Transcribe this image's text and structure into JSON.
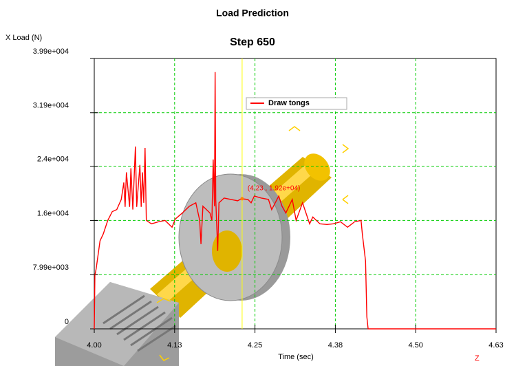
{
  "chart_data": {
    "type": "line",
    "title": "Load Prediction",
    "subtitle": "Step  650",
    "ylabel": "X Load (N)",
    "xlabel": "Time (sec)",
    "triad_label": "Z",
    "xlim": [
      4.0,
      4.625
    ],
    "ylim": [
      0,
      39900
    ],
    "xticks": [
      {
        "value": 4.0,
        "label": "4.00"
      },
      {
        "value": 4.125,
        "label": "4.13"
      },
      {
        "value": 4.25,
        "label": "4.25"
      },
      {
        "value": 4.375,
        "label": "4.38"
      },
      {
        "value": 4.5,
        "label": "4.50"
      },
      {
        "value": 4.625,
        "label": "4.63"
      }
    ],
    "yticks": [
      0,
      {
        "value": 7990,
        "label": "7.99e+003"
      },
      {
        "value": 16000,
        "label": "1.6e+004"
      },
      {
        "value": 24000,
        "label": "2.4e+004"
      },
      {
        "value": 31900,
        "label": "3.19e+004"
      },
      {
        "value": 39900,
        "label": "3.99e+004"
      }
    ],
    "grid": true,
    "legend": "top-center",
    "cursor": {
      "x": 4.23,
      "y": 19200,
      "label": "(4.23 , 1.92e+04)",
      "color": "#ffff00"
    },
    "series": [
      {
        "name": "Draw tongs",
        "color": "#ff0000",
        "x": [
          4.0,
          4.001,
          4.003,
          4.009,
          4.014,
          4.021,
          4.028,
          4.035,
          4.042,
          4.046,
          4.048,
          4.05,
          4.055,
          4.057,
          4.06,
          4.064,
          4.066,
          4.071,
          4.073,
          4.075,
          4.077,
          4.079,
          4.081,
          4.089,
          4.1,
          4.11,
          4.121,
          4.126,
          4.137,
          4.148,
          4.158,
          4.164,
          4.166,
          4.169,
          4.18,
          4.183,
          4.185,
          4.187,
          4.188,
          4.189,
          4.192,
          4.194,
          4.202,
          4.212,
          4.223,
          4.229,
          4.239,
          4.244,
          4.249,
          4.26,
          4.271,
          4.276,
          4.287,
          4.292,
          4.298,
          4.308,
          4.314,
          4.324,
          4.335,
          4.34,
          4.351,
          4.362,
          4.372,
          4.383,
          4.394,
          4.405,
          4.415,
          4.417,
          4.422,
          4.424,
          4.426,
          4.625
        ],
        "values": [
          0,
          7900,
          8900,
          13000,
          14000,
          16000,
          17300,
          17600,
          19100,
          21600,
          18000,
          23100,
          18000,
          23700,
          17600,
          26900,
          18000,
          24200,
          18000,
          23100,
          18600,
          26700,
          16000,
          15500,
          15800,
          16000,
          15000,
          16200,
          17100,
          18100,
          18600,
          16000,
          12500,
          18100,
          17100,
          16000,
          25000,
          18100,
          37900,
          19100,
          11500,
          18600,
          19300,
          19100,
          18900,
          19200,
          19100,
          18600,
          19600,
          19300,
          19100,
          17600,
          19600,
          18100,
          17100,
          19100,
          16000,
          18600,
          15500,
          16500,
          15500,
          15400,
          15500,
          15800,
          15000,
          15800,
          16000,
          14000,
          10000,
          1800,
          0,
          0
        ]
      }
    ]
  }
}
